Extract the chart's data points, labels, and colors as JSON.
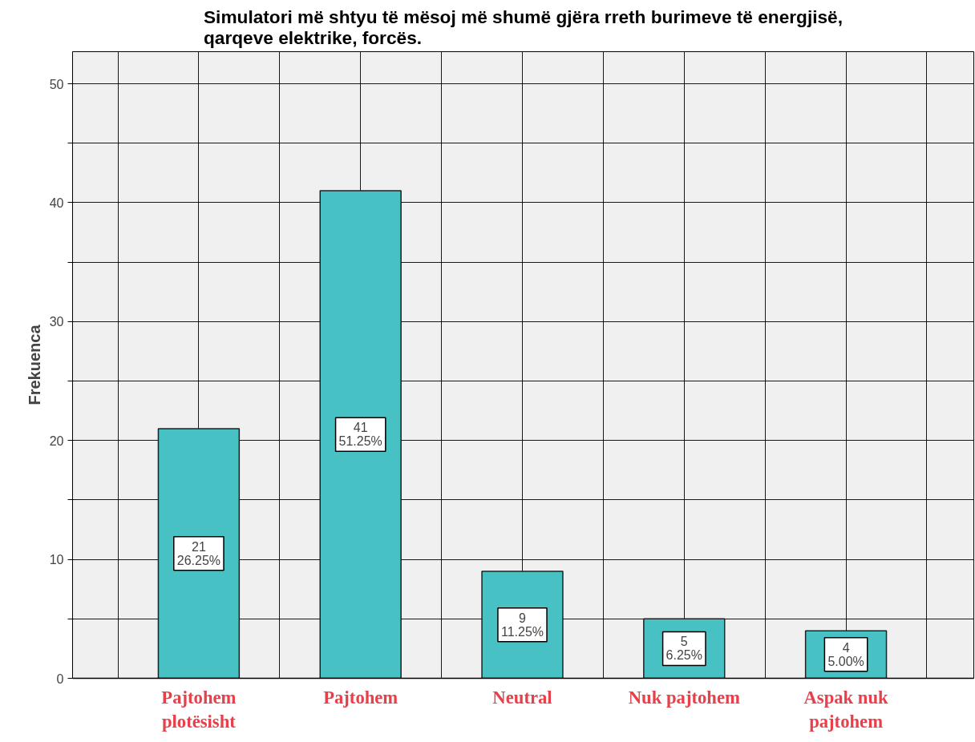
{
  "chart_data": {
    "type": "bar",
    "title": "Simulatori më shtyu të mësoj më shumë gjëra rreth burimeve të energjisë, qarqeve elektrike, forcës.",
    "ylabel": "Frekuenca",
    "categories": [
      "Pajtohem plotësisht",
      "Pajtohem",
      "Neutral",
      "Nuk pajtohem",
      "Aspak nuk pajtohem"
    ],
    "values": [
      21,
      41,
      9,
      5,
      4
    ],
    "value_labels": [
      "21\n26.25%",
      "41\n51.25%",
      "9\n11.25%",
      "5\n6.25%",
      "4\n5.00%"
    ],
    "color": "#47c1c4",
    "ylim": [
      0,
      52.7
    ],
    "yticks": [
      0,
      {
        "value": 5,
        "label": null
      },
      10,
      {
        "value": 15,
        "label": null
      },
      20,
      {
        "value": 25,
        "label": null
      },
      30,
      {
        "value": 35,
        "label": null
      },
      40,
      {
        "value": 45,
        "label": null
      },
      50
    ],
    "grid": true
  }
}
